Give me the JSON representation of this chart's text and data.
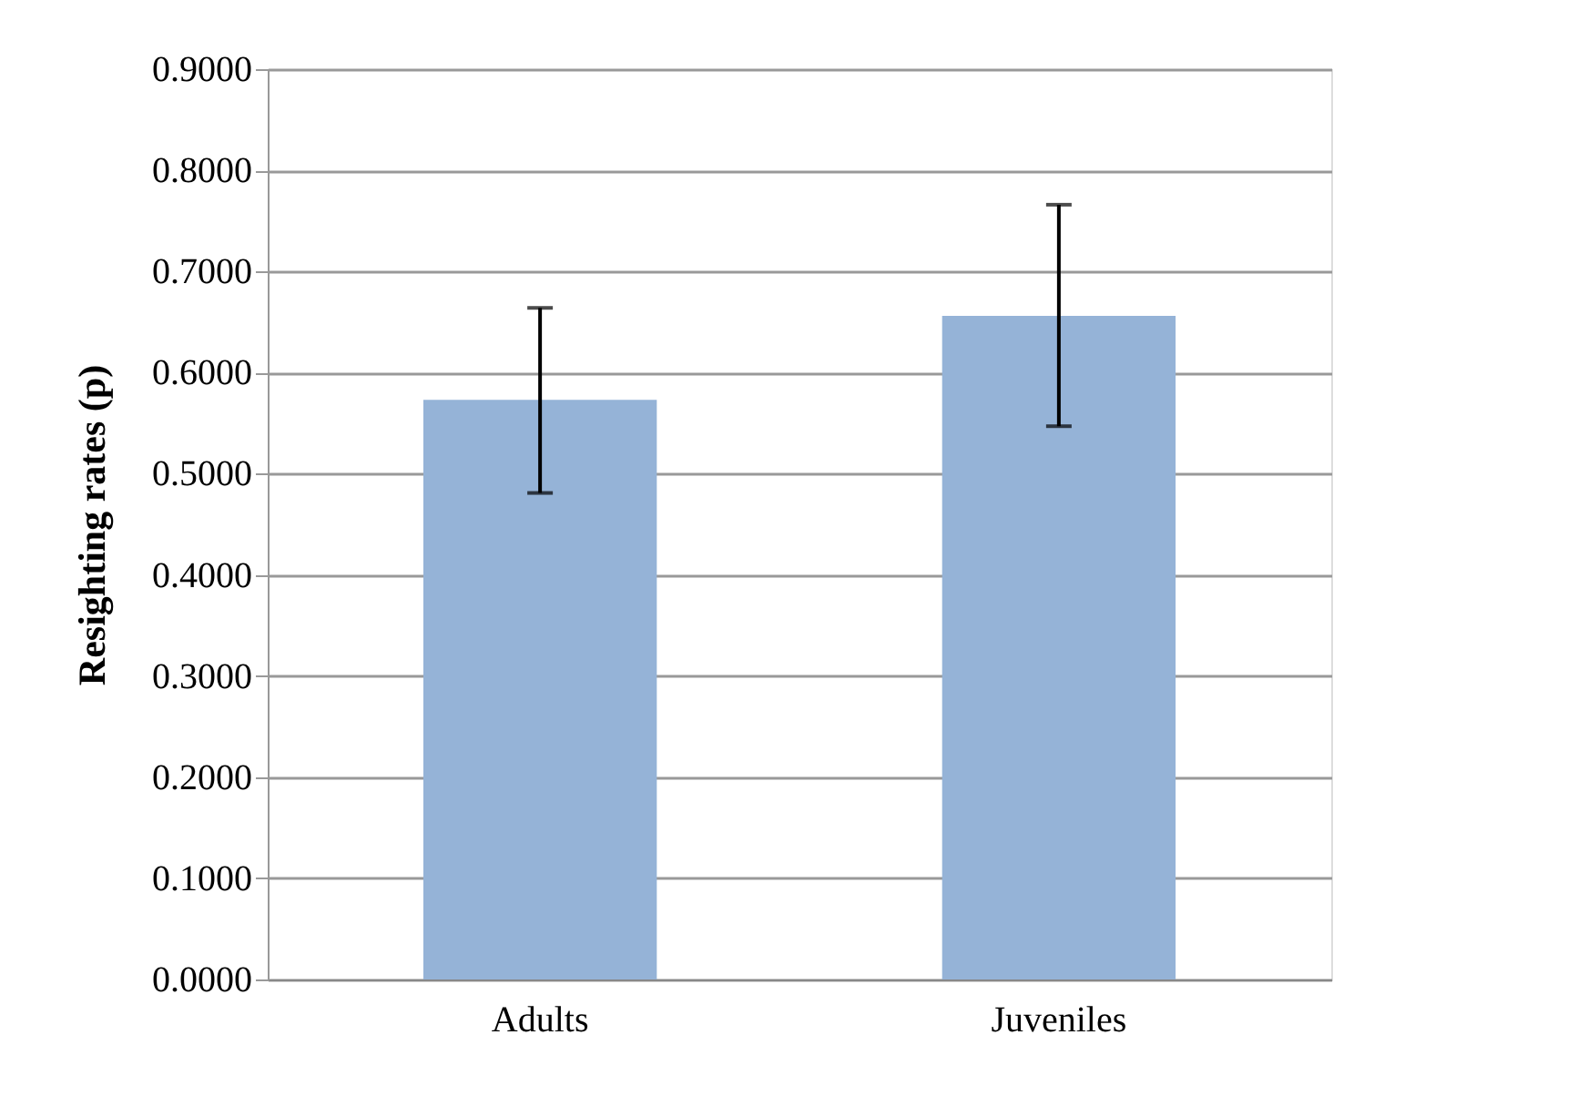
{
  "chart_data": {
    "type": "bar",
    "ylabel": "Resighting rates (p)",
    "categories": [
      "Adults",
      "Juveniles"
    ],
    "values": [
      0.573,
      0.656
    ],
    "errors": [
      [
        0.481,
        0.664
      ],
      [
        0.547,
        0.766
      ]
    ],
    "color": "#95b3d7",
    "ylim": [
      0,
      0.9
    ],
    "yticks": [
      {
        "value": 0,
        "label": "0.0000"
      },
      {
        "value": 0.1,
        "label": "0.1000"
      },
      {
        "value": 0.2,
        "label": "0.2000"
      },
      {
        "value": 0.3,
        "label": "0.3000"
      },
      {
        "value": 0.4,
        "label": "0.4000"
      },
      {
        "value": 0.5,
        "label": "0.5000"
      },
      {
        "value": 0.6,
        "label": "0.6000"
      },
      {
        "value": 0.7,
        "label": "0.7000"
      },
      {
        "value": 0.8,
        "label": "0.8000"
      },
      {
        "value": 0.9,
        "label": "0.9000"
      }
    ],
    "grid": "y"
  }
}
